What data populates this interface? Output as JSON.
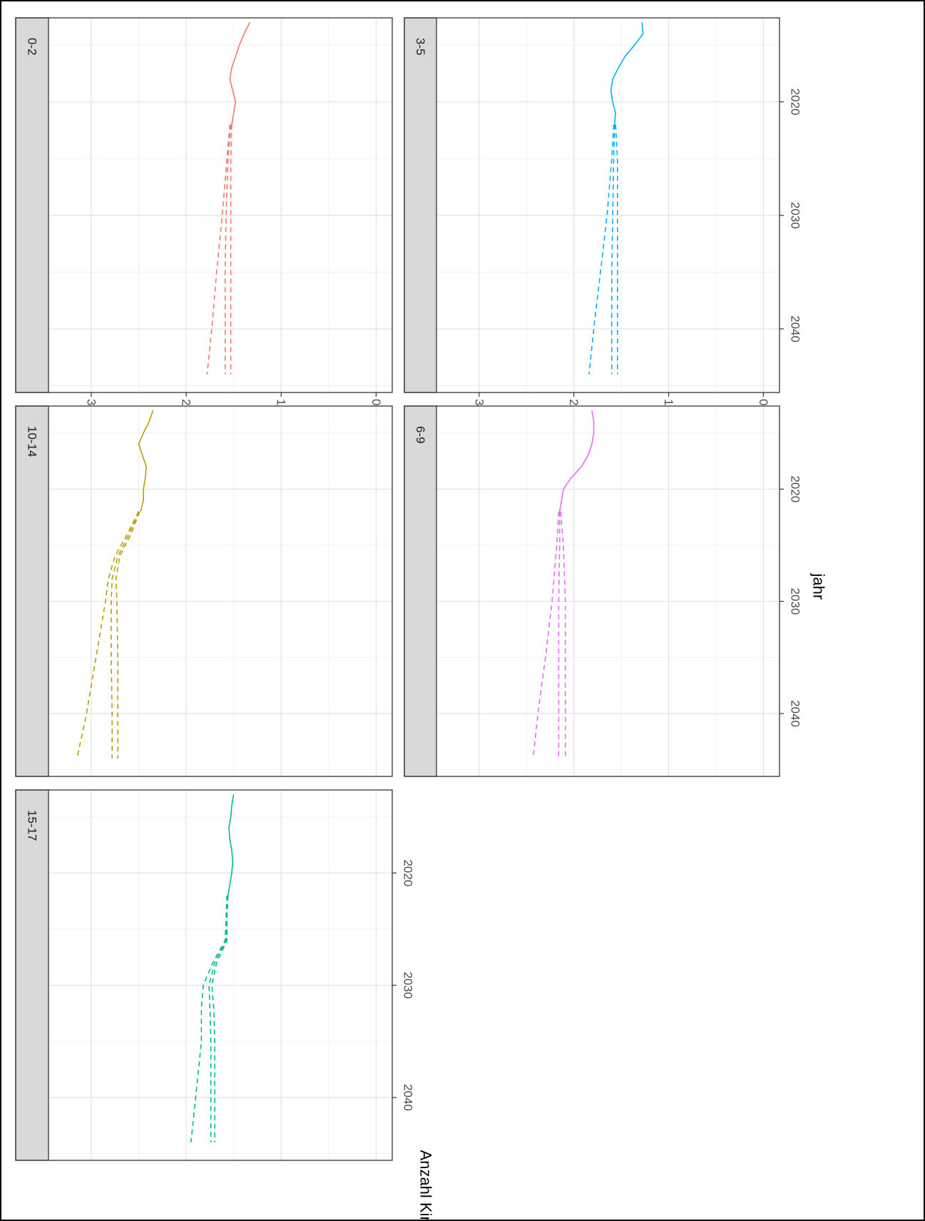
{
  "chart_data": {
    "type": "line",
    "orientation": "rotated 90 degrees clockwise (page is sideways)",
    "xlabel": "jahr",
    "ylabel": "Anzahl Kinder",
    "xlim": [
      2012.6,
      2045.6
    ],
    "ylim": [
      -170,
      3450
    ],
    "x_ticks": [
      2020,
      2030,
      2040
    ],
    "y_ticks": [
      0,
      1000,
      2000,
      3000
    ],
    "grid": true,
    "legend": "none",
    "panels": [
      {
        "label": "0-2",
        "color": "#F8766D",
        "observed": {
          "x": [
            2013,
            2014,
            2015,
            2016,
            2017,
            2018,
            2019,
            2020,
            2021,
            2022
          ],
          "y": [
            1330,
            1390,
            1440,
            1480,
            1520,
            1540,
            1510,
            1480,
            1500,
            1520
          ]
        },
        "projections": [
          {
            "x": [
              2022,
              2025,
              2030,
              2035,
              2040,
              2044
            ],
            "y": [
              1540,
              1570,
              1620,
              1680,
              1730,
              1780
            ]
          },
          {
            "x": [
              2022,
              2025,
              2030,
              2035,
              2040,
              2044
            ],
            "y": [
              1530,
              1560,
              1580,
              1590,
              1590,
              1590
            ]
          },
          {
            "x": [
              2022,
              2025,
              2030,
              2035,
              2040,
              2044
            ],
            "y": [
              1520,
              1530,
              1530,
              1530,
              1530,
              1530
            ]
          }
        ]
      },
      {
        "label": "10-14",
        "color": "#B79F00",
        "observed": {
          "x": [
            2013,
            2014,
            2015,
            2016,
            2017,
            2018,
            2019,
            2020,
            2021,
            2022
          ],
          "y": [
            2350,
            2390,
            2450,
            2500,
            2460,
            2420,
            2430,
            2450,
            2450,
            2480
          ]
        },
        "projections": [
          {
            "x": [
              2022,
              2024,
              2026,
              2028,
              2030,
              2035,
              2040,
              2044
            ],
            "y": [
              2500,
              2620,
              2750,
              2820,
              2850,
              2950,
              3050,
              3150
            ]
          },
          {
            "x": [
              2022,
              2024,
              2026,
              2028,
              2030,
              2035,
              2040,
              2044
            ],
            "y": [
              2500,
              2600,
              2720,
              2780,
              2790,
              2790,
              2780,
              2780
            ]
          },
          {
            "x": [
              2022,
              2024,
              2026,
              2028,
              2030,
              2035,
              2040,
              2044
            ],
            "y": [
              2490,
              2580,
              2700,
              2740,
              2730,
              2720,
              2720,
              2720
            ]
          }
        ]
      },
      {
        "label": "15-17",
        "color": "#00BF7D",
        "observed": {
          "x": [
            2013,
            2014,
            2015,
            2016,
            2017,
            2018,
            2019,
            2020,
            2021,
            2022
          ],
          "y": [
            1500,
            1520,
            1530,
            1550,
            1540,
            1520,
            1510,
            1520,
            1540,
            1560
          ]
        },
        "projections": [
          {
            "x": [
              2022,
              2024,
              2026,
              2028,
              2030,
              2032,
              2035,
              2040,
              2044
            ],
            "y": [
              1570,
              1580,
              1590,
              1720,
              1820,
              1840,
              1840,
              1900,
              1950
            ]
          },
          {
            "x": [
              2022,
              2024,
              2026,
              2028,
              2030,
              2032,
              2035,
              2040,
              2044
            ],
            "y": [
              1570,
              1580,
              1580,
              1700,
              1760,
              1750,
              1740,
              1740,
              1740
            ]
          },
          {
            "x": [
              2022,
              2024,
              2026,
              2028,
              2030,
              2032,
              2035,
              2040,
              2044
            ],
            "y": [
              1560,
              1570,
              1570,
              1680,
              1730,
              1710,
              1700,
              1700,
              1700
            ]
          }
        ]
      },
      {
        "label": "3-5",
        "color": "#00B0F6",
        "observed": {
          "x": [
            2013,
            2014,
            2015,
            2016,
            2017,
            2018,
            2019,
            2020,
            2021,
            2022
          ],
          "y": [
            1280,
            1270,
            1360,
            1460,
            1530,
            1590,
            1610,
            1590,
            1560,
            1570
          ]
        },
        "projections": [
          {
            "x": [
              2022,
              2025,
              2030,
              2035,
              2040,
              2044
            ],
            "y": [
              1580,
              1600,
              1650,
              1720,
              1790,
              1840
            ]
          },
          {
            "x": [
              2022,
              2025,
              2030,
              2035,
              2040,
              2044
            ],
            "y": [
              1570,
              1580,
              1590,
              1600,
              1600,
              1600
            ]
          },
          {
            "x": [
              2022,
              2025,
              2030,
              2035,
              2040,
              2044
            ],
            "y": [
              1560,
              1540,
              1540,
              1540,
              1540,
              1540
            ]
          }
        ]
      },
      {
        "label": "6-9",
        "color": "#E76BF3",
        "observed": {
          "x": [
            2013,
            2014,
            2015,
            2016,
            2017,
            2018,
            2019,
            2020,
            2021,
            2022
          ],
          "y": [
            1810,
            1790,
            1790,
            1810,
            1850,
            1920,
            2030,
            2110,
            2130,
            2150
          ]
        },
        "projections": [
          {
            "x": [
              2022,
              2025,
              2030,
              2035,
              2040,
              2044
            ],
            "y": [
              2160,
              2180,
              2230,
              2300,
              2380,
              2430
            ]
          },
          {
            "x": [
              2022,
              2025,
              2030,
              2035,
              2040,
              2044
            ],
            "y": [
              2150,
              2150,
              2160,
              2160,
              2160,
              2160
            ]
          },
          {
            "x": [
              2022,
              2025,
              2030,
              2035,
              2040,
              2044
            ],
            "y": [
              2140,
              2110,
              2090,
              2090,
              2090,
              2090
            ]
          }
        ]
      }
    ]
  }
}
